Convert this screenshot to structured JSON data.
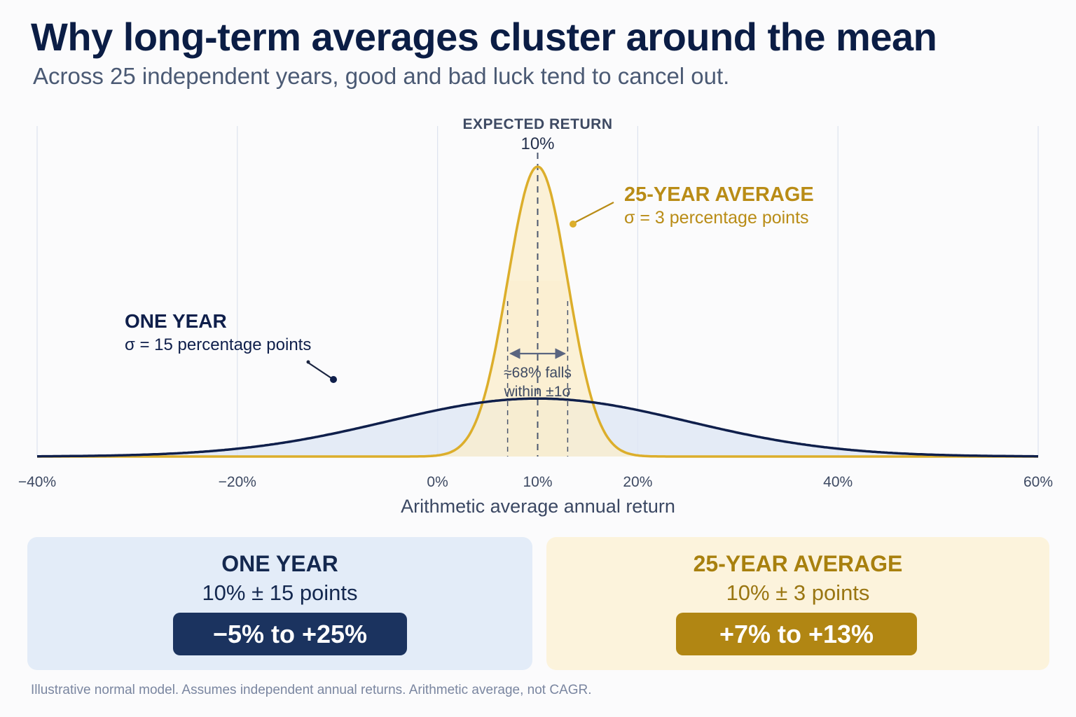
{
  "title": "Why long-term averages cluster around the mean",
  "subtitle": "Across 25 independent years, good and bad luck tend to cancel out.",
  "footnote": "Illustrative normal model. Assumes independent annual returns. Arithmetic average, not CAGR.",
  "colors": {
    "one_year": "#0f1f4b",
    "one_year_fill": "#dfe7f4",
    "avg": "#dcae2b",
    "avg_fill": "#fbeecb",
    "grid": "#dde3ee",
    "mean_line": "#4a566e",
    "annotation": "#1a2440"
  },
  "chart_data": {
    "type": "area",
    "xlabel": "Arithmetic average annual return",
    "ylabel": "",
    "xlim": [
      -40,
      60
    ],
    "x_ticks": [
      -40,
      -20,
      0,
      10,
      20,
      40,
      60
    ],
    "x_tick_labels": [
      "−40%",
      "−20%",
      "0%",
      "10%",
      "20%",
      "40%",
      "60%"
    ],
    "grid": true,
    "series": [
      {
        "key": "one_year",
        "distribution": "normal",
        "mean": 10,
        "sd": 15,
        "label": "ONE YEAR",
        "sublabel": "σ = 15 percentage points"
      },
      {
        "key": "avg",
        "distribution": "normal",
        "mean": 10,
        "sd": 3,
        "label": "25-YEAR AVERAGE",
        "sublabel": "σ = 3 percentage points"
      }
    ],
    "annotations": {
      "expected_label": "EXPECTED RETURN",
      "expected_value": "10%",
      "band_text_1": "≈68% falls",
      "band_text_2": "within ±1σ",
      "band_range": [
        7,
        13
      ]
    }
  },
  "cards": [
    {
      "title": "ONE YEAR",
      "subtitle": "10% ± 15 points",
      "range": "−5% to +25%"
    },
    {
      "title": "25-YEAR AVERAGE",
      "subtitle": "10% ± 3 points",
      "range": "+7% to +13%"
    }
  ]
}
